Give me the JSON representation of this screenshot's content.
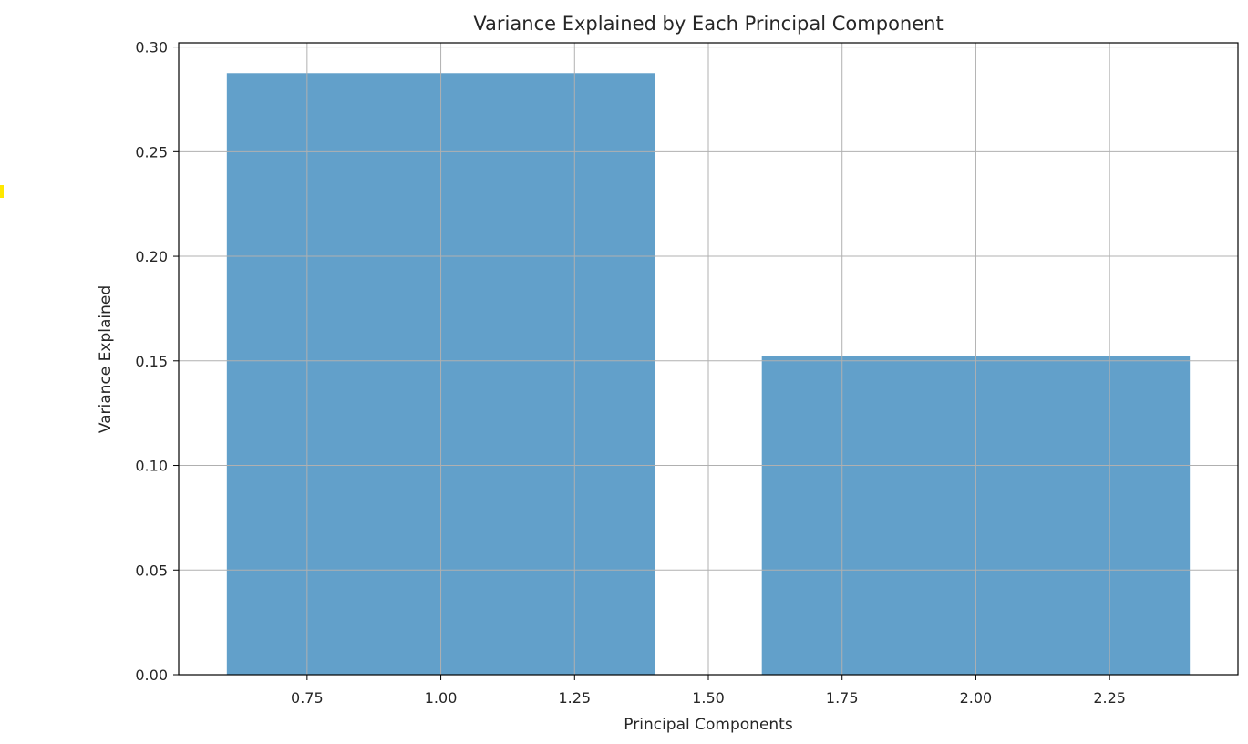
{
  "chart_data": {
    "type": "bar",
    "title": "Variance Explained by Each Principal Component",
    "xlabel": "Principal Components",
    "ylabel": "Variance Explained",
    "x": [
      1,
      2
    ],
    "values": [
      0.2875,
      0.1525
    ],
    "bar_width": 0.8,
    "bar_color": "#1f77b4",
    "bar_alpha": 0.7,
    "xlim": [
      0.51,
      2.49
    ],
    "ylim": [
      0,
      0.302
    ],
    "xticks": [
      0.75,
      1.0,
      1.25,
      1.5,
      1.75,
      2.0,
      2.25
    ],
    "xtick_labels": [
      "0.75",
      "1.00",
      "1.25",
      "1.50",
      "1.75",
      "2.00",
      "2.25"
    ],
    "yticks": [
      0,
      0.05,
      0.1,
      0.15,
      0.2,
      0.25,
      0.3
    ],
    "ytick_labels": [
      "0.00",
      "0.05",
      "0.10",
      "0.15",
      "0.20",
      "0.25",
      "0.30"
    ],
    "grid": true,
    "grid_color": "#b0b0b0",
    "legend": null
  },
  "marker_color": "#ffe800"
}
